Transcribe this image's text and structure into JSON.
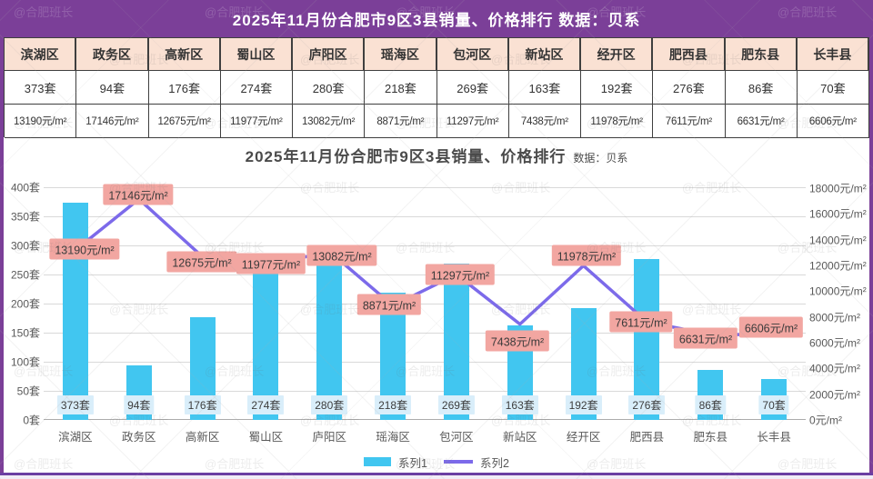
{
  "header": {
    "title": "2025年11月份合肥市9区3县销量、价格排行  数据：贝系"
  },
  "table": {
    "districts": [
      "滨湖区",
      "政务区",
      "高新区",
      "蜀山区",
      "庐阳区",
      "瑶海区",
      "包河区",
      "新站区",
      "经开区",
      "肥西县",
      "肥东县",
      "长丰县"
    ],
    "sales": [
      "373套",
      "94套",
      "176套",
      "274套",
      "280套",
      "218套",
      "269套",
      "163套",
      "192套",
      "276套",
      "86套",
      "70套"
    ],
    "prices": [
      "13190元/m²",
      "17146元/m²",
      "12675元/m²",
      "11977元/m²",
      "13082元/m²",
      "8871元/m²",
      "11297元/m²",
      "7438元/m²",
      "11978元/m²",
      "7611元/m²",
      "6631元/m²",
      "6606元/m²"
    ]
  },
  "chart": {
    "title_main": "2025年11月份合肥市9区3县销量、价格排行",
    "subtitle": "数据：贝系"
  },
  "chart_data": {
    "type": "bar+line",
    "title": "2025年11月份合肥市9区3县销量、价格排行",
    "subtitle": "数据：贝系",
    "categories": [
      "滨湖区",
      "政务区",
      "高新区",
      "蜀山区",
      "庐阳区",
      "瑶海区",
      "包河区",
      "新站区",
      "经开区",
      "肥西县",
      "肥东县",
      "长丰县"
    ],
    "series": [
      {
        "name": "系列1",
        "type": "bar",
        "axis": "left",
        "unit": "套",
        "color": "#41c6f0",
        "values": [
          373,
          94,
          176,
          274,
          280,
          218,
          269,
          163,
          192,
          276,
          86,
          70
        ]
      },
      {
        "name": "系列2",
        "type": "line",
        "axis": "right",
        "unit": "元/m²",
        "color": "#7c6aea",
        "values": [
          13190,
          17146,
          12675,
          11977,
          13082,
          8871,
          11297,
          7438,
          11978,
          7611,
          6631,
          6606
        ]
      }
    ],
    "left_axis": {
      "min": 0,
      "max": 400,
      "step": 50,
      "unit": "套"
    },
    "right_axis": {
      "min": 0,
      "max": 18000,
      "step": 2000,
      "unit": "元/m²"
    },
    "legend": [
      "系列1",
      "系列2"
    ],
    "legend_position": "bottom",
    "grid": true
  },
  "watermark": {
    "text": "@合肥班长"
  }
}
